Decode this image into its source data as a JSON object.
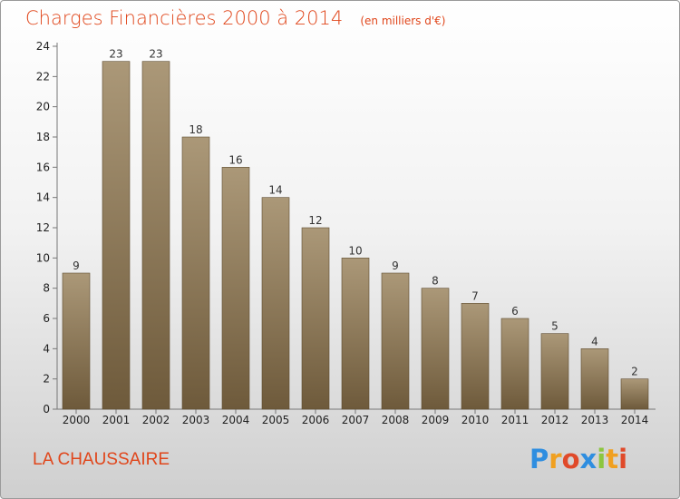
{
  "title": "Charges Financières 2000 à 2014",
  "unit": "(en milliers d'€)",
  "city": "LA CHAUSSAIRE",
  "logo": {
    "text": "Proxiti",
    "letters": [
      {
        "ch": "P",
        "color": "#2f8ee0"
      },
      {
        "ch": "r",
        "color": "#f0a020"
      },
      {
        "ch": "o",
        "color": "#e04a2a"
      },
      {
        "ch": "x",
        "color": "#2f8ee0"
      },
      {
        "ch": "i",
        "color": "#8cc63f"
      },
      {
        "ch": "t",
        "color": "#f0a020"
      },
      {
        "ch": "i",
        "color": "#e04a2a"
      }
    ]
  },
  "colors": {
    "title": "#e0461b",
    "bar_top": "#ab9878",
    "bar_bottom": "#6e5a3b"
  },
  "chart_data": {
    "type": "bar",
    "title": "Charges Financières 2000 à 2014",
    "subtitle": "(en milliers d'€)",
    "categories": [
      "2000",
      "2001",
      "2002",
      "2003",
      "2004",
      "2005",
      "2006",
      "2007",
      "2008",
      "2009",
      "2010",
      "2011",
      "2012",
      "2013",
      "2014"
    ],
    "values": [
      9,
      23,
      23,
      18,
      16,
      14,
      12,
      10,
      9,
      8,
      7,
      6,
      5,
      4,
      2
    ],
    "ylim": [
      0,
      24
    ],
    "yticks": [
      0,
      2,
      4,
      6,
      8,
      10,
      12,
      14,
      16,
      18,
      20,
      22,
      24
    ],
    "grid": false,
    "legend": "none"
  }
}
